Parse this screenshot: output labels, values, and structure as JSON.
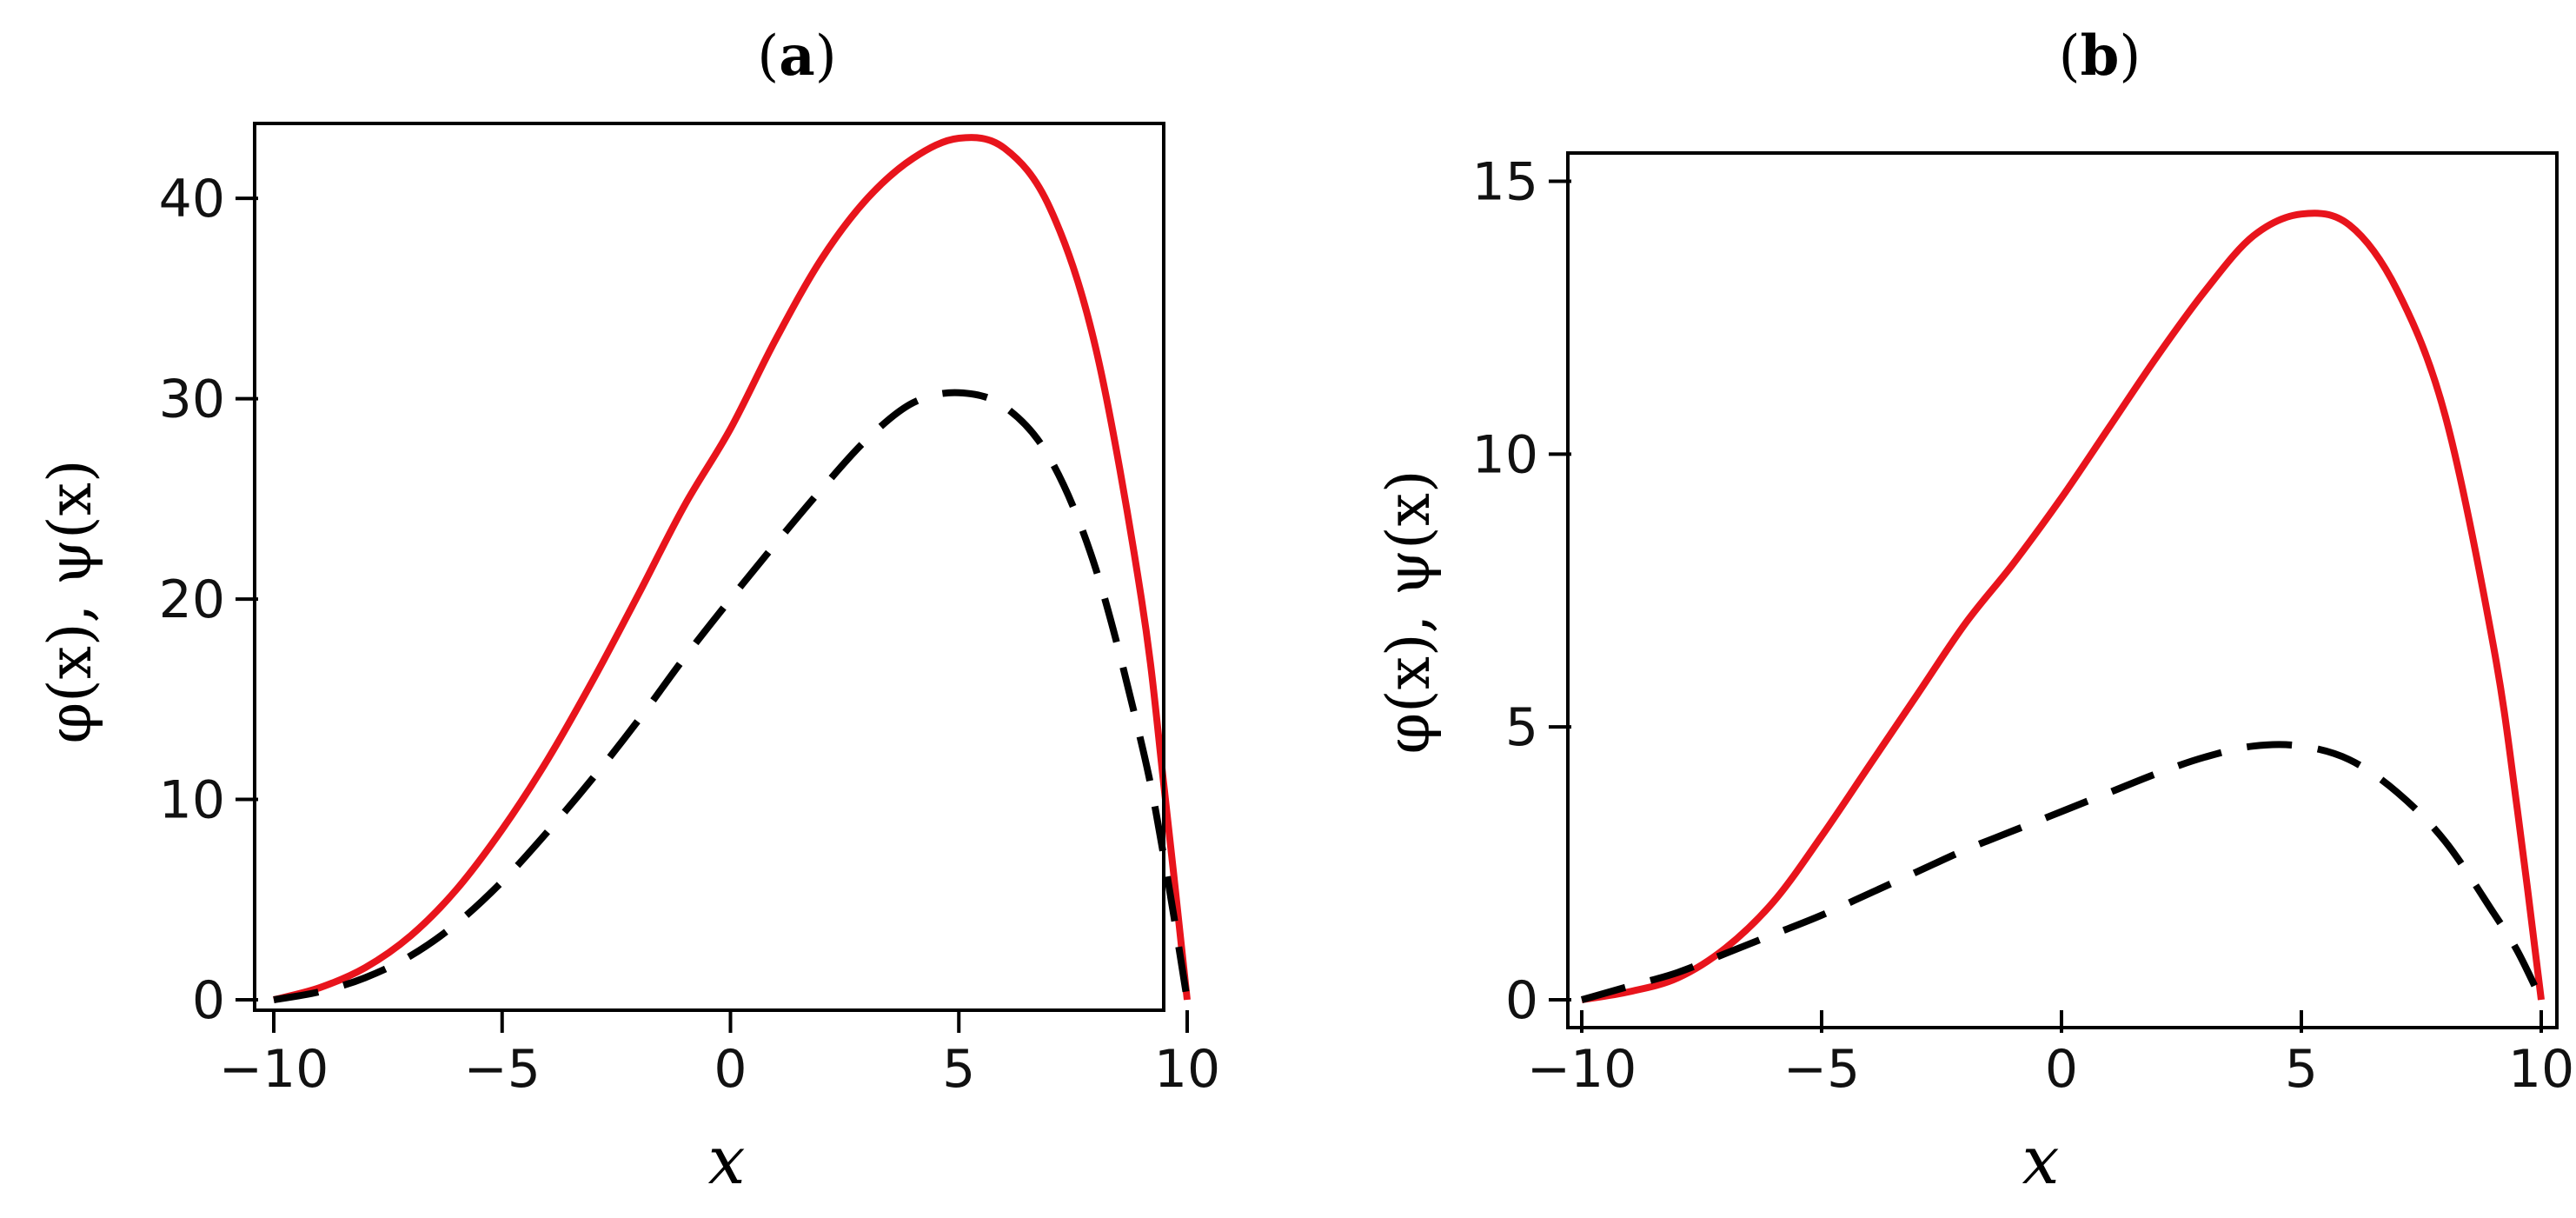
{
  "chart_data": [
    {
      "type": "line",
      "panel_label": "a",
      "title_open": "(",
      "title_close": ")",
      "xlabel": "x",
      "ylabel": "φ(x), ψ(x)",
      "xlim": [
        -10,
        10
      ],
      "ylim": [
        0,
        43
      ],
      "xticks": [
        -10,
        -5,
        0,
        5,
        10
      ],
      "xtick_labels": [
        "−10",
        "−5",
        "0",
        "5",
        "10"
      ],
      "yticks": [
        0,
        10,
        20,
        30,
        40
      ],
      "ytick_labels": [
        "0",
        "10",
        "20",
        "30",
        "40"
      ],
      "grid": false,
      "series": [
        {
          "name": "φ(x)",
          "style": "solid",
          "color": "#e8141c",
          "x": [
            -10,
            -9,
            -8,
            -7,
            -6,
            -5,
            -4,
            -3,
            -2,
            -1,
            0,
            1,
            2,
            3,
            4,
            5,
            6,
            7,
            8,
            9,
            9.5,
            10
          ],
          "y": [
            0,
            0.6,
            1.6,
            3.2,
            5.5,
            8.5,
            12.0,
            16.0,
            20.3,
            24.7,
            28.5,
            33.0,
            37.0,
            40.0,
            42.0,
            43.0,
            42.5,
            39.5,
            32.5,
            20.0,
            10.5,
            0
          ]
        },
        {
          "name": "ψ(x)",
          "style": "dashed",
          "color": "#000000",
          "x": [
            -10,
            -9,
            -8,
            -7,
            -6,
            -5,
            -4,
            -3,
            -2,
            -1,
            0,
            1,
            2,
            3,
            4,
            5,
            6,
            7,
            8,
            9,
            9.5,
            10
          ],
          "y": [
            0,
            0.4,
            1.1,
            2.2,
            3.8,
            5.9,
            8.4,
            11.1,
            14.0,
            17.1,
            20.0,
            22.8,
            25.5,
            28.0,
            29.8,
            30.3,
            29.6,
            27.0,
            21.5,
            12.8,
            7.0,
            0
          ]
        }
      ]
    },
    {
      "type": "line",
      "panel_label": "b",
      "title_open": "(",
      "title_close": ")",
      "xlabel": "x",
      "ylabel": "φ(x), ψ(x)",
      "xlim": [
        -10,
        10
      ],
      "ylim": [
        0,
        15.2
      ],
      "xticks": [
        -10,
        -5,
        0,
        5,
        10
      ],
      "xtick_labels": [
        "−10",
        "−5",
        "0",
        "5",
        "10"
      ],
      "yticks": [
        0,
        5,
        10,
        15
      ],
      "ytick_labels": [
        "0",
        "5",
        "10",
        "15"
      ],
      "grid": false,
      "series": [
        {
          "name": "φ(x)",
          "style": "solid",
          "color": "#e8141c",
          "x": [
            -10,
            -9,
            -8,
            -7,
            -6,
            -5,
            -4,
            -3,
            -2,
            -1,
            0,
            1,
            2,
            3,
            4,
            5,
            6,
            7,
            8,
            9,
            9.5,
            10
          ],
          "y": [
            0,
            0.15,
            0.4,
            0.95,
            1.8,
            3.0,
            4.3,
            5.6,
            6.9,
            8.0,
            9.2,
            10.5,
            11.8,
            13.0,
            14.0,
            14.4,
            14.2,
            13.0,
            10.7,
            6.5,
            3.5,
            0
          ]
        },
        {
          "name": "ψ(x)",
          "style": "dashed",
          "color": "#000000",
          "x": [
            -10,
            -9,
            -8,
            -7,
            -6,
            -5,
            -4,
            -3,
            -2,
            -1,
            0,
            1,
            2,
            3,
            4,
            5,
            6,
            7,
            8,
            9,
            9.5,
            10
          ],
          "y": [
            0,
            0.25,
            0.5,
            0.85,
            1.2,
            1.55,
            1.95,
            2.35,
            2.75,
            3.1,
            3.45,
            3.8,
            4.15,
            4.45,
            4.65,
            4.65,
            4.4,
            3.8,
            2.9,
            1.6,
            0.9,
            0
          ]
        }
      ]
    }
  ]
}
